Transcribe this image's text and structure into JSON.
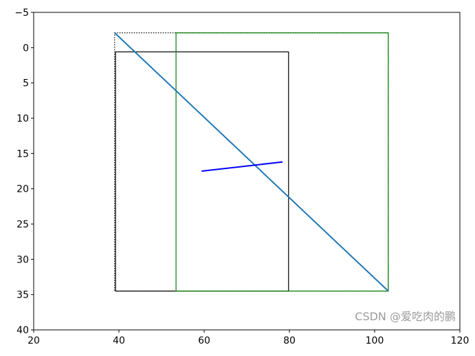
{
  "chart_data": {
    "type": "line",
    "title": "",
    "xlabel": "",
    "ylabel": "",
    "xlim": [
      20,
      120
    ],
    "ylim": [
      40,
      -5
    ],
    "y_inverted": true,
    "grid": false,
    "xticks": [
      20,
      40,
      60,
      80,
      100,
      120
    ],
    "yticks": [
      -5,
      0,
      5,
      10,
      15,
      20,
      25,
      30,
      35,
      40
    ],
    "series": [
      {
        "kind": "line",
        "color": "#1f77b4",
        "x": [
          39.0,
          103.2
        ],
        "y": [
          -2.1,
          34.5
        ]
      },
      {
        "kind": "line",
        "color": "#0000ff",
        "x": [
          59.4,
          78.4
        ],
        "y": [
          17.5,
          16.2
        ]
      },
      {
        "kind": "rect",
        "color": "#000000",
        "style": "dotted",
        "x": [
          39.0,
          103.2
        ],
        "y": [
          -2.1,
          34.5
        ]
      },
      {
        "kind": "rect",
        "color": "#000000",
        "style": "solid",
        "x": [
          39.2,
          79.8
        ],
        "y": [
          0.6,
          34.5
        ]
      },
      {
        "kind": "rect",
        "color": "#008000",
        "style": "solid",
        "x": [
          53.4,
          103.2
        ],
        "y": [
          -2.1,
          34.5
        ]
      }
    ]
  },
  "watermark": "CSDN @爱吃肉的鹏"
}
